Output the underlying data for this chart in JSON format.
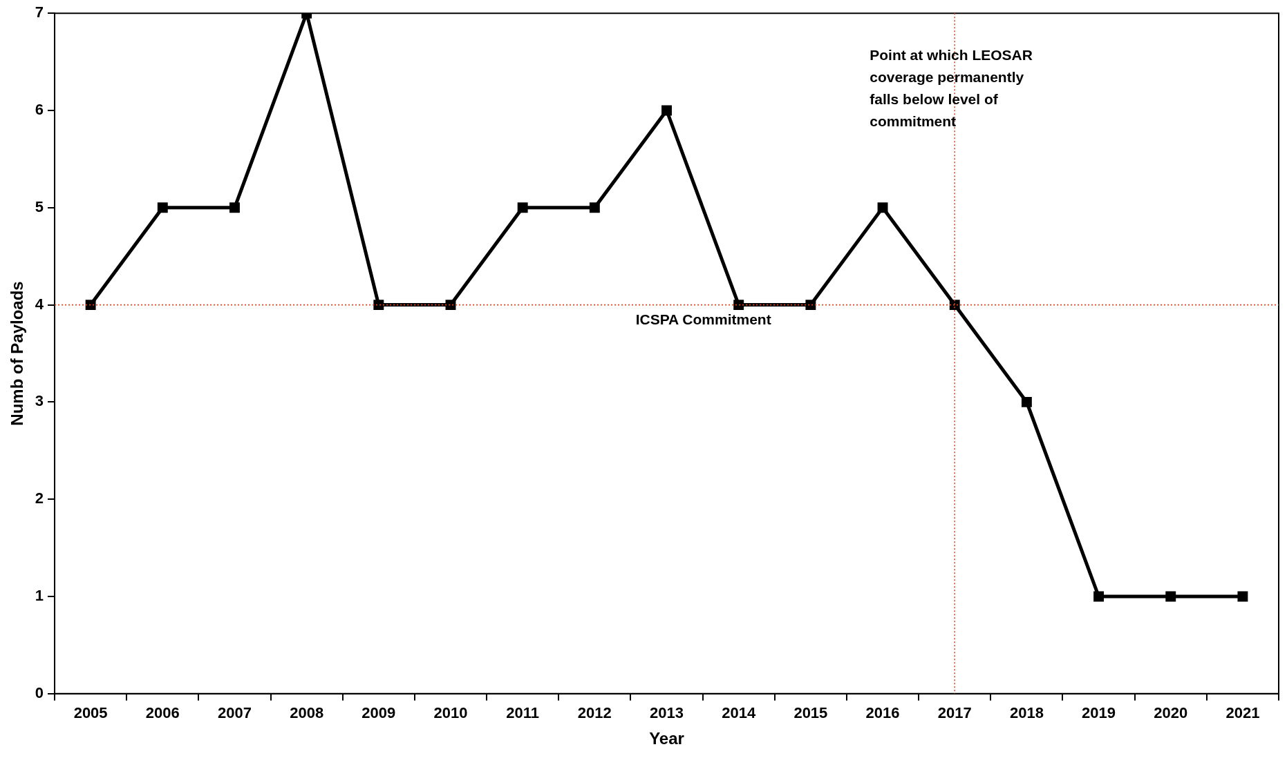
{
  "chart_data": {
    "type": "line",
    "xlabel": "Year",
    "ylabel": "Numb of Payloads",
    "categories": [
      "2005",
      "2006",
      "2007",
      "2008",
      "2009",
      "2010",
      "2011",
      "2012",
      "2013",
      "2014",
      "2015",
      "2016",
      "2017",
      "2018",
      "2019",
      "2020",
      "2021"
    ],
    "series": [
      {
        "color": "#000000",
        "values": [
          4,
          5,
          5,
          7,
          4,
          4,
          5,
          5,
          6,
          4,
          4,
          5,
          4,
          3,
          1,
          1,
          1
        ]
      }
    ],
    "ylim": [
      0,
      7
    ],
    "yticks": [
      0,
      1,
      2,
      3,
      4,
      5,
      6,
      7
    ],
    "grid": false,
    "legend": false,
    "marker": "square",
    "line_style": "solid",
    "ref_lines": [
      {
        "axis": "y",
        "value": 4,
        "label": "ICSPA Commitment",
        "color": "#e8401c",
        "line_style": "dotted"
      },
      {
        "axis": "x",
        "value": "2017",
        "label": "Point at which LEOSAR coverage permanently falls below level of commitment",
        "color": "#e8401c",
        "line_style": "dotted"
      }
    ]
  }
}
